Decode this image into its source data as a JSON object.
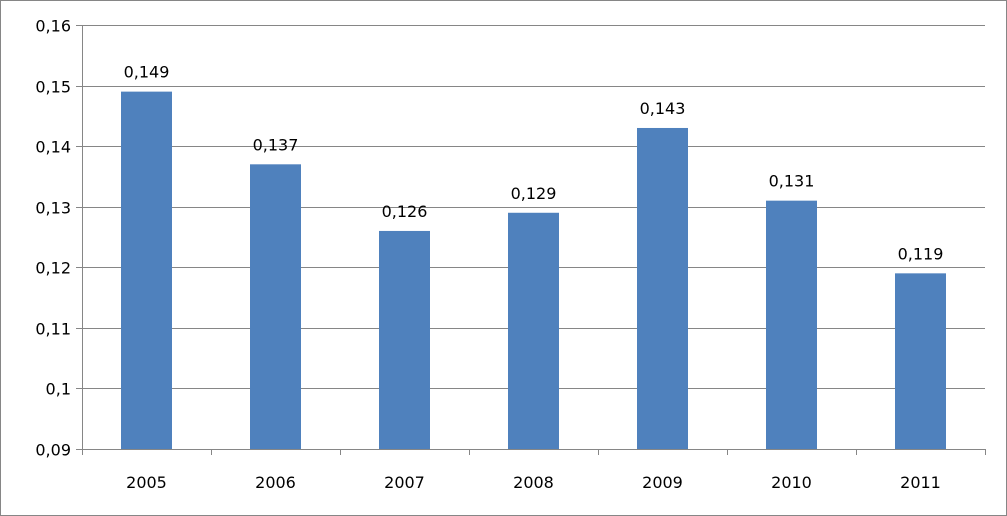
{
  "chart_data": {
    "type": "bar",
    "categories": [
      "2005",
      "2006",
      "2007",
      "2008",
      "2009",
      "2010",
      "2011"
    ],
    "values": [
      0.149,
      0.137,
      0.126,
      0.129,
      0.143,
      0.131,
      0.119
    ],
    "value_labels": [
      "0,149",
      "0,137",
      "0,126",
      "0,129",
      "0,143",
      "0,131",
      "0,119"
    ],
    "y_ticks": [
      0.09,
      0.1,
      0.11,
      0.12,
      0.13,
      0.14,
      0.15,
      0.16
    ],
    "y_tick_labels": [
      "0,09",
      "0,1",
      "0,11",
      "0,12",
      "0,13",
      "0,14",
      "0,15",
      "0,16"
    ],
    "ylim": [
      0.09,
      0.16
    ],
    "title": "",
    "xlabel": "",
    "ylabel": "",
    "grid": true,
    "legend": "none",
    "bar_color": "#4F81BD",
    "grid_color": "#868686"
  }
}
